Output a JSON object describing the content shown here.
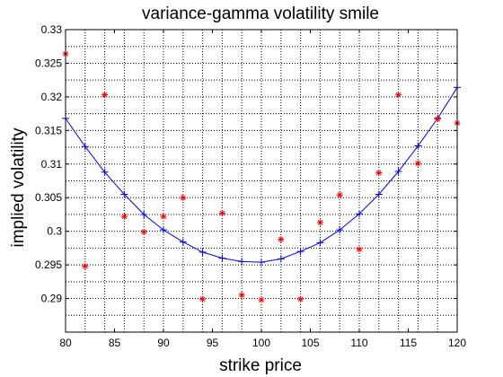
{
  "chart_data": {
    "type": "scatter",
    "title": "variance-gamma volatility smile",
    "xlabel": "strike price",
    "ylabel": "implied volatility",
    "xlim": [
      80,
      120
    ],
    "ylim": [
      0.285,
      0.33
    ],
    "grid": true,
    "legend": "none",
    "x_ticks": [
      "80",
      "85",
      "90",
      "95",
      "100",
      "105",
      "110",
      "115",
      "120"
    ],
    "y_ticks": [
      "0.29",
      "0.295",
      "0.3",
      "0.305",
      "0.31",
      "0.315",
      "0.32",
      "0.325",
      "0.33"
    ],
    "series": [
      {
        "style": "line-with-plus-markers",
        "color": "#0000ff",
        "x": [
          80,
          82,
          84,
          86,
          88,
          90,
          92,
          94,
          96,
          98,
          100,
          102,
          104,
          106,
          108,
          110,
          112,
          114,
          116,
          118,
          120
        ],
        "y": [
          0.3168,
          0.3126,
          0.3088,
          0.3055,
          0.3025,
          0.3002,
          0.2984,
          0.2969,
          0.296,
          0.2955,
          0.2954,
          0.2959,
          0.297,
          0.2983,
          0.3002,
          0.3026,
          0.3055,
          0.3089,
          0.3127,
          0.3168,
          0.3214
        ]
      },
      {
        "style": "star-markers",
        "color": "#ff0000",
        "x": [
          80,
          82,
          84,
          86,
          88,
          90,
          92,
          94,
          96,
          98,
          100,
          102,
          104,
          106,
          108,
          110,
          112,
          114,
          116,
          118,
          120
        ],
        "y": [
          0.3264,
          0.2948,
          0.3203,
          0.3022,
          0.2999,
          0.3022,
          0.305,
          0.2899,
          0.3027,
          0.2905,
          0.2898,
          0.2988,
          0.2899,
          0.3013,
          0.3054,
          0.2973,
          0.3087,
          0.3203,
          0.3101,
          0.3167,
          0.3161
        ]
      }
    ]
  }
}
